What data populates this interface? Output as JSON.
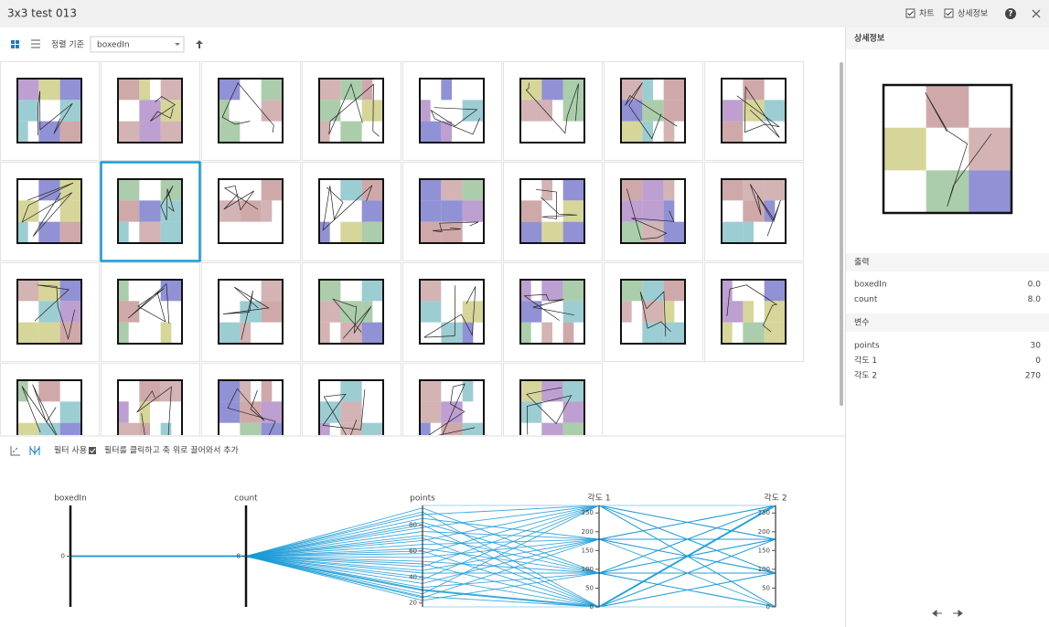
{
  "header": {
    "title": "3x3 test 013",
    "toggles": [
      "차트",
      "상세정보"
    ],
    "help": "?"
  },
  "toolbar": {
    "sort_label": "정렬 기준",
    "sort_value": "boxedIn"
  },
  "filter_bar": {
    "use_filter": "필터 사용",
    "hint": "필터를 클릭하고 축 위로 끌어와서 추가"
  },
  "chart_data": {
    "type": "parallel",
    "color": "#1a9bd7",
    "axes": [
      {
        "name": "boxedIn",
        "lim": [
          -1,
          1
        ],
        "ticks": [
          0
        ]
      },
      {
        "name": "count",
        "lim": [
          7,
          9
        ],
        "ticks": [
          8
        ]
      },
      {
        "name": "points",
        "lim": [
          17,
          95
        ],
        "ticks": [
          20,
          40,
          60,
          80
        ]
      },
      {
        "name": "각도 1",
        "lim": [
          0,
          270
        ],
        "ticks": [
          0,
          50,
          100,
          150,
          200,
          250
        ]
      },
      {
        "name": "각도 2",
        "lim": [
          0,
          270
        ],
        "ticks": [
          0,
          50,
          100,
          150,
          200,
          250
        ]
      }
    ],
    "rows": [
      [
        0,
        8,
        30,
        0,
        270
      ],
      [
        0,
        8,
        22,
        90,
        0
      ],
      [
        0,
        8,
        24,
        180,
        90
      ],
      [
        0,
        8,
        25,
        0,
        180
      ],
      [
        0,
        8,
        27,
        270,
        90
      ],
      [
        0,
        8,
        32,
        90,
        180
      ],
      [
        0,
        8,
        35,
        180,
        0
      ],
      [
        0,
        8,
        38,
        270,
        270
      ],
      [
        0,
        8,
        40,
        0,
        90
      ],
      [
        0,
        8,
        43,
        90,
        270
      ],
      [
        0,
        8,
        45,
        180,
        180
      ],
      [
        0,
        8,
        48,
        270,
        0
      ],
      [
        0,
        8,
        50,
        0,
        0
      ],
      [
        0,
        8,
        52,
        90,
        90
      ],
      [
        0,
        8,
        55,
        180,
        270
      ],
      [
        0,
        8,
        58,
        270,
        180
      ],
      [
        0,
        8,
        60,
        0,
        270
      ],
      [
        0,
        8,
        62,
        90,
        0
      ],
      [
        0,
        8,
        65,
        180,
        90
      ],
      [
        0,
        8,
        68,
        270,
        90
      ],
      [
        0,
        8,
        70,
        0,
        180
      ],
      [
        0,
        8,
        72,
        90,
        180
      ],
      [
        0,
        8,
        75,
        180,
        270
      ],
      [
        0,
        8,
        78,
        270,
        0
      ],
      [
        0,
        8,
        80,
        0,
        90
      ],
      [
        0,
        8,
        82,
        90,
        270
      ],
      [
        0,
        8,
        85,
        180,
        180
      ],
      [
        0,
        8,
        88,
        270,
        180
      ],
      [
        0,
        8,
        90,
        0,
        0
      ],
      [
        0,
        8,
        93,
        90,
        90
      ]
    ]
  },
  "detail": {
    "title": "상세정보",
    "output": {
      "title": "출력",
      "items": [
        {
          "label": "boxedIn",
          "value": "0.0"
        },
        {
          "label": "count",
          "value": "8.0"
        }
      ]
    },
    "variables": {
      "title": "변수",
      "items": [
        {
          "label": "points",
          "value": "30"
        },
        {
          "label": "각도 1",
          "value": "0"
        },
        {
          "label": "각도 2",
          "value": "270"
        }
      ]
    }
  }
}
